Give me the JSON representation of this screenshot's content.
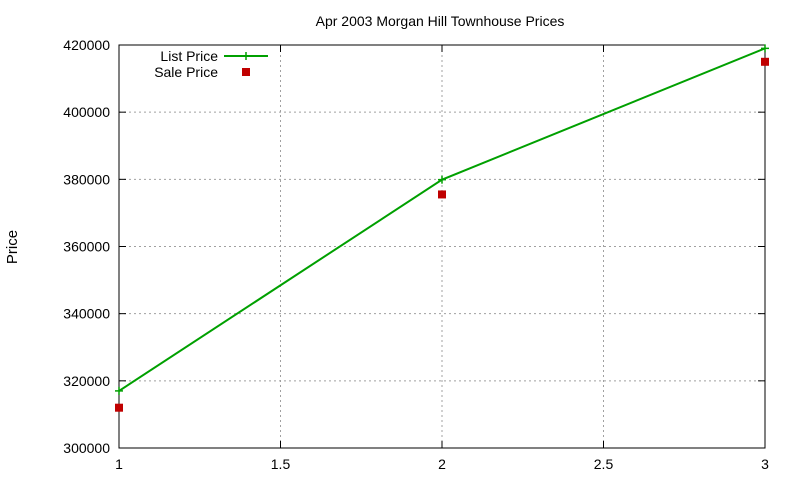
{
  "chart_data": {
    "type": "line",
    "title": "Apr 2003 Morgan Hill Townhouse Prices",
    "xlabel": "",
    "ylabel": "Price",
    "xlim": [
      1,
      3
    ],
    "ylim": [
      300000,
      420000
    ],
    "grid": true,
    "x_ticks": [
      "1",
      "1.5",
      "2",
      "2.5",
      "3"
    ],
    "y_ticks": [
      "300000",
      "320000",
      "340000",
      "360000",
      "380000",
      "400000",
      "420000"
    ],
    "legend_position": "top-left",
    "series": [
      {
        "name": "List Price",
        "style": "line-with-plus-markers",
        "color": "#00a000",
        "points": [
          {
            "x": 1,
            "y": 317000
          },
          {
            "x": 2,
            "y": 379900
          },
          {
            "x": 3,
            "y": 419000
          }
        ]
      },
      {
        "name": "Sale Price",
        "style": "square-markers",
        "color": "#c00000",
        "points": [
          {
            "x": 1,
            "y": 312000
          },
          {
            "x": 2,
            "y": 375500
          },
          {
            "x": 3,
            "y": 415000
          }
        ]
      }
    ]
  }
}
